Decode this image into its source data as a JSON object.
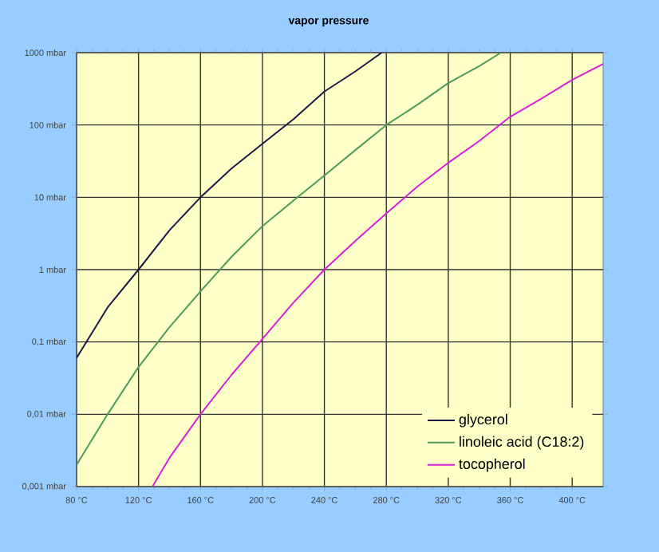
{
  "chart_data": {
    "type": "line",
    "title": "vapor pressure",
    "log": "y",
    "grid": true,
    "legend": "bottom right",
    "xlim": [
      80,
      420
    ],
    "ylim": [
      0.001,
      1000
    ],
    "xticks": [
      {
        "value": 80,
        "label": "80 °C"
      },
      {
        "value": 120,
        "label": "120 °C"
      },
      {
        "value": 160,
        "label": "160 °C"
      },
      {
        "value": 200,
        "label": "200 °C"
      },
      {
        "value": 240,
        "label": "240 °C"
      },
      {
        "value": 280,
        "label": "280 °C"
      },
      {
        "value": 320,
        "label": "320 °C"
      },
      {
        "value": 360,
        "label": "360 °C"
      },
      {
        "value": 400,
        "label": "400 °C"
      }
    ],
    "yticks": [
      {
        "value": 0.001,
        "label": "0,001 mbar"
      },
      {
        "value": 0.01,
        "label": "0,01 mbar"
      },
      {
        "value": 0.1,
        "label": "0,1 mbar"
      },
      {
        "value": 1,
        "label": "1 mbar"
      },
      {
        "value": 10,
        "label": "10 mbar"
      },
      {
        "value": 100,
        "label": "100 mbar"
      },
      {
        "value": 1000,
        "label": "1000 mbar"
      }
    ],
    "series": [
      {
        "name": "glycerol",
        "color": "#1a1a4a",
        "x": [
          80,
          100,
          120,
          140,
          160,
          180,
          200,
          220,
          240,
          260,
          277
        ],
        "values": [
          0.06,
          0.3,
          1,
          3.5,
          10,
          25,
          55,
          120,
          290,
          550,
          1000
        ]
      },
      {
        "name": "linoleic acid (C18:2)",
        "color": "#4c9a5c",
        "x": [
          80,
          100,
          120,
          140,
          160,
          180,
          200,
          220,
          240,
          260,
          280,
          300,
          320,
          340,
          354
        ],
        "values": [
          0.002,
          0.01,
          0.045,
          0.16,
          0.5,
          1.5,
          4,
          9,
          20,
          45,
          100,
          190,
          380,
          650,
          1000
        ]
      },
      {
        "name": "tocopherol",
        "color": "#d81fd8",
        "x": [
          129,
          140,
          160,
          180,
          200,
          220,
          240,
          260,
          280,
          300,
          320,
          340,
          360,
          380,
          400,
          420
        ],
        "values": [
          0.001,
          0.0025,
          0.01,
          0.035,
          0.11,
          0.35,
          1,
          2.5,
          6,
          14,
          30,
          60,
          130,
          230,
          420,
          700
        ]
      }
    ]
  }
}
